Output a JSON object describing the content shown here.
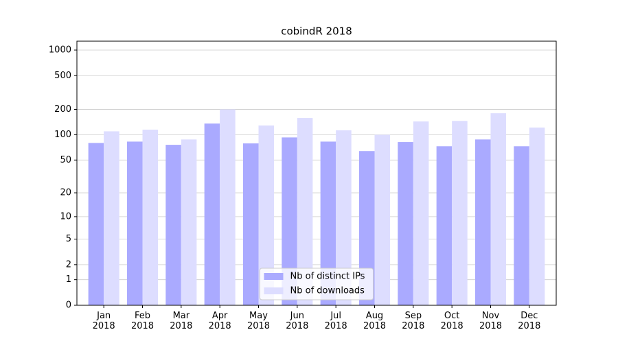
{
  "chart_data": {
    "type": "bar",
    "title": "cobindR 2018",
    "categories": [
      "Jan\n2018",
      "Feb\n2018",
      "Mar\n2018",
      "Apr\n2018",
      "May\n2018",
      "Jun\n2018",
      "Jul\n2018",
      "Aug\n2018",
      "Sep\n2018",
      "Oct\n2018",
      "Nov\n2018",
      "Dec\n2018"
    ],
    "series": [
      {
        "name": "Nb of distinct IPs",
        "color": "#aaaaff",
        "values": [
          80,
          83,
          76,
          136,
          79,
          93,
          83,
          64,
          82,
          73,
          88,
          73
        ]
      },
      {
        "name": "Nb of downloads",
        "color": "#ddddff",
        "values": [
          110,
          115,
          88,
          200,
          129,
          158,
          113,
          100,
          144,
          146,
          180,
          122
        ]
      }
    ],
    "yscale": "log1p",
    "ylim": [
      0,
      1273
    ],
    "yticks": [
      0,
      1,
      2,
      5,
      10,
      20,
      50,
      100,
      200,
      500,
      1000
    ],
    "grid": true,
    "legend": "lower center"
  }
}
